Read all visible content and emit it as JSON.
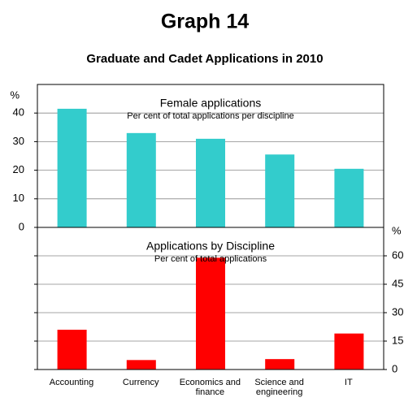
{
  "header": {
    "title": "Graph 14",
    "subtitle": "Graduate and Cadet Applications in 2010"
  },
  "chart_data": [
    {
      "type": "bar",
      "title": "Female applications",
      "subtitle": "Per cent of total applications per discipline",
      "unit": "%",
      "values": [
        41.5,
        33,
        31,
        25.5,
        20.5
      ],
      "color": "#33cccc",
      "ylim": [
        0,
        50
      ],
      "yticks": [
        0,
        10,
        20,
        30,
        40
      ],
      "grid": true,
      "axis_side": "left"
    },
    {
      "type": "bar",
      "title": "Applications by Discipline",
      "subtitle": "Per cent of total applications",
      "unit": "%",
      "categories": [
        "Accounting",
        "Currency",
        "Economics and finance",
        "Science and engineering",
        "IT"
      ],
      "values": [
        21,
        5,
        59,
        5.5,
        19
      ],
      "color": "#ff0000",
      "ylim": [
        0,
        75
      ],
      "yticks": [
        0,
        15,
        30,
        45,
        60
      ],
      "grid": true,
      "axis_side": "right"
    }
  ]
}
